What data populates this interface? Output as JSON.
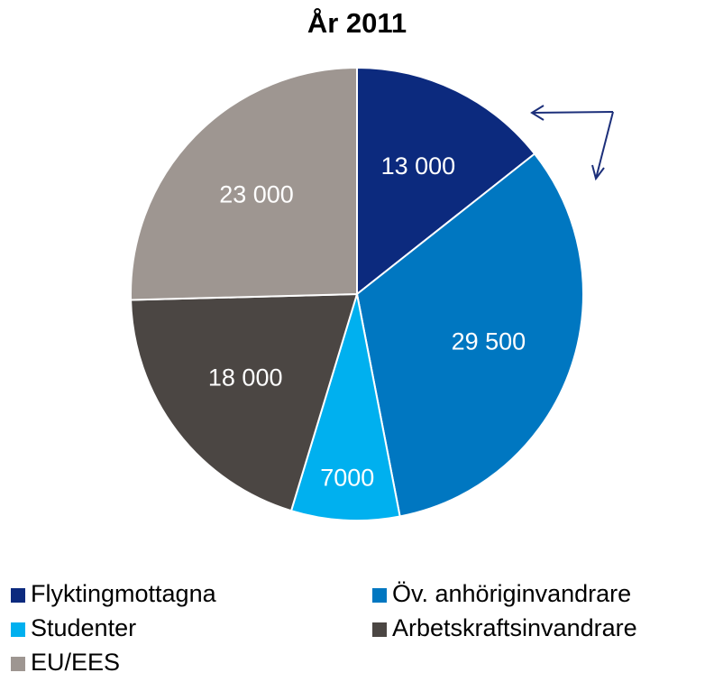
{
  "chart_data": {
    "type": "pie",
    "title": "År 2011",
    "categories": [
      "Flyktingmottagna",
      "Öv. anhöriginvandrare",
      "Studenter",
      "Arbetskraftsinvandrare",
      "EU/EES"
    ],
    "values": [
      13000,
      29500,
      7000,
      18000,
      23000
    ],
    "value_labels": [
      "13 000",
      "29 500",
      "7000",
      "18 000",
      "23 000"
    ],
    "colors": [
      "#0c2a7e",
      "#0077c1",
      "#00b0ef",
      "#4b4643",
      "#9e9691"
    ],
    "legend": "bottom"
  }
}
